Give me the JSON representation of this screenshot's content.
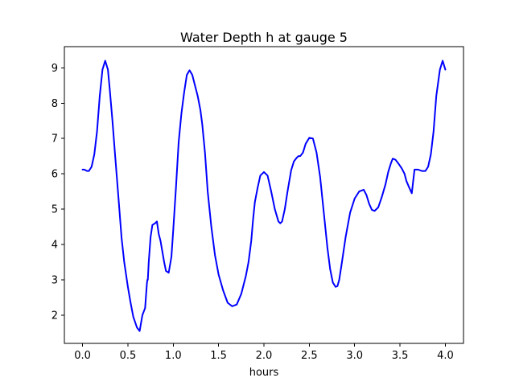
{
  "chart_data": {
    "type": "line",
    "title": "Water Depth h at gauge 5",
    "xlabel": "hours",
    "ylabel": "",
    "xlim": [
      -0.2,
      4.2
    ],
    "ylim": [
      1.2,
      9.6
    ],
    "xticks": [
      0.0,
      0.5,
      1.0,
      1.5,
      2.0,
      2.5,
      3.0,
      3.5,
      4.0
    ],
    "xtick_labels": [
      "0.0",
      "0.5",
      "1.0",
      "1.5",
      "2.0",
      "2.5",
      "3.0",
      "3.5",
      "4.0"
    ],
    "yticks": [
      2,
      3,
      4,
      5,
      6,
      7,
      8,
      9
    ],
    "ytick_labels": [
      "2",
      "3",
      "4",
      "5",
      "6",
      "7",
      "8",
      "9"
    ],
    "grid": false,
    "series": [
      {
        "color": "#0000ff",
        "x": [
          0.0,
          0.02,
          0.05,
          0.07,
          0.1,
          0.13,
          0.16,
          0.19,
          0.22,
          0.25,
          0.28,
          0.3,
          0.33,
          0.36,
          0.4,
          0.43,
          0.46,
          0.5,
          0.53,
          0.56,
          0.6,
          0.63,
          0.66,
          0.69,
          0.71,
          0.715,
          0.72,
          0.73,
          0.75,
          0.77,
          0.8,
          0.82,
          0.84,
          0.86,
          0.88,
          0.9,
          0.92,
          0.95,
          0.98,
          1.0,
          1.03,
          1.06,
          1.09,
          1.12,
          1.15,
          1.18,
          1.21,
          1.24,
          1.27,
          1.3,
          1.32,
          1.35,
          1.38,
          1.42,
          1.46,
          1.5,
          1.55,
          1.6,
          1.65,
          1.7,
          1.75,
          1.8,
          1.83,
          1.86,
          1.88,
          1.9,
          1.93,
          1.96,
          2.0,
          2.04,
          2.08,
          2.12,
          2.16,
          2.18,
          2.2,
          2.23,
          2.26,
          2.3,
          2.33,
          2.36,
          2.38,
          2.4,
          2.43,
          2.46,
          2.5,
          2.54,
          2.58,
          2.62,
          2.66,
          2.7,
          2.73,
          2.76,
          2.79,
          2.81,
          2.83,
          2.86,
          2.9,
          2.95,
          3.0,
          3.05,
          3.1,
          3.13,
          3.16,
          3.19,
          3.22,
          3.26,
          3.3,
          3.34,
          3.37,
          3.4,
          3.42,
          3.45,
          3.48,
          3.52,
          3.55,
          3.57,
          3.6,
          3.63,
          3.66,
          3.7,
          3.74,
          3.78,
          3.81,
          3.84,
          3.87,
          3.9,
          3.94,
          3.97,
          4.0
        ],
        "y": [
          6.12,
          6.12,
          6.08,
          6.08,
          6.2,
          6.55,
          7.2,
          8.2,
          8.95,
          9.2,
          8.95,
          8.4,
          7.5,
          6.5,
          5.2,
          4.2,
          3.5,
          2.8,
          2.35,
          1.95,
          1.65,
          1.55,
          2.0,
          2.2,
          2.9,
          3.0,
          3.0,
          3.5,
          4.2,
          4.55,
          4.6,
          4.65,
          4.3,
          4.1,
          3.8,
          3.5,
          3.25,
          3.2,
          3.65,
          4.4,
          5.6,
          6.9,
          7.7,
          8.3,
          8.8,
          8.93,
          8.8,
          8.5,
          8.2,
          7.8,
          7.4,
          6.6,
          5.5,
          4.5,
          3.7,
          3.15,
          2.7,
          2.35,
          2.25,
          2.3,
          2.6,
          3.1,
          3.5,
          4.1,
          4.7,
          5.2,
          5.6,
          5.95,
          6.05,
          5.95,
          5.5,
          5.0,
          4.65,
          4.6,
          4.65,
          5.0,
          5.5,
          6.1,
          6.35,
          6.45,
          6.5,
          6.5,
          6.6,
          6.85,
          7.02,
          7.0,
          6.6,
          5.9,
          4.9,
          3.9,
          3.3,
          2.92,
          2.8,
          2.82,
          3.0,
          3.5,
          4.2,
          4.9,
          5.3,
          5.5,
          5.55,
          5.4,
          5.15,
          4.98,
          4.95,
          5.05,
          5.35,
          5.7,
          6.05,
          6.3,
          6.43,
          6.4,
          6.3,
          6.15,
          6.0,
          5.8,
          5.62,
          5.45,
          6.12,
          6.12,
          6.08,
          6.08,
          6.2,
          6.55,
          7.2,
          8.2,
          8.95,
          9.2,
          8.95
        ]
      }
    ]
  }
}
